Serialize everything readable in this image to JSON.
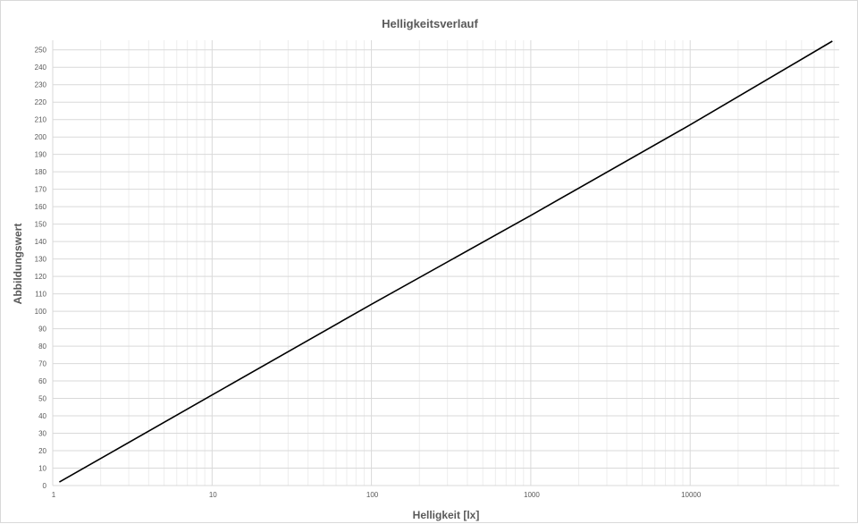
{
  "chart_data": {
    "type": "line",
    "title": "Helligkeitsverlauf",
    "xlabel": "Helligkeit [lx]",
    "ylabel": "Abbildungswert",
    "x_scale": "log",
    "xlim": [
      1,
      80000
    ],
    "ylim": [
      0,
      255
    ],
    "x_ticks": [
      1,
      10,
      100,
      1000,
      10000
    ],
    "x_tick_labels": [
      "1",
      "10",
      "100",
      "1000",
      "10000"
    ],
    "y_ticks": [
      0,
      10,
      20,
      30,
      40,
      50,
      60,
      70,
      80,
      90,
      100,
      110,
      120,
      130,
      140,
      150,
      160,
      170,
      180,
      190,
      200,
      210,
      220,
      230,
      240,
      250
    ],
    "y_tick_labels": [
      "0",
      "10",
      "20",
      "30",
      "40",
      "50",
      "60",
      "70",
      "80",
      "90",
      "100",
      "110",
      "120",
      "130",
      "140",
      "150",
      "160",
      "170",
      "180",
      "190",
      "200",
      "210",
      "220",
      "230",
      "240",
      "250"
    ],
    "grid": true,
    "legend": "none",
    "series": [
      {
        "x": [
          1.1,
          10,
          100,
          1000,
          10000,
          78000
        ],
        "y": [
          2,
          52,
          104,
          155,
          207,
          255
        ]
      }
    ],
    "colors": {
      "line": "#000000",
      "major_grid": "#d9d9d9",
      "minor_grid": "#ededed"
    }
  }
}
